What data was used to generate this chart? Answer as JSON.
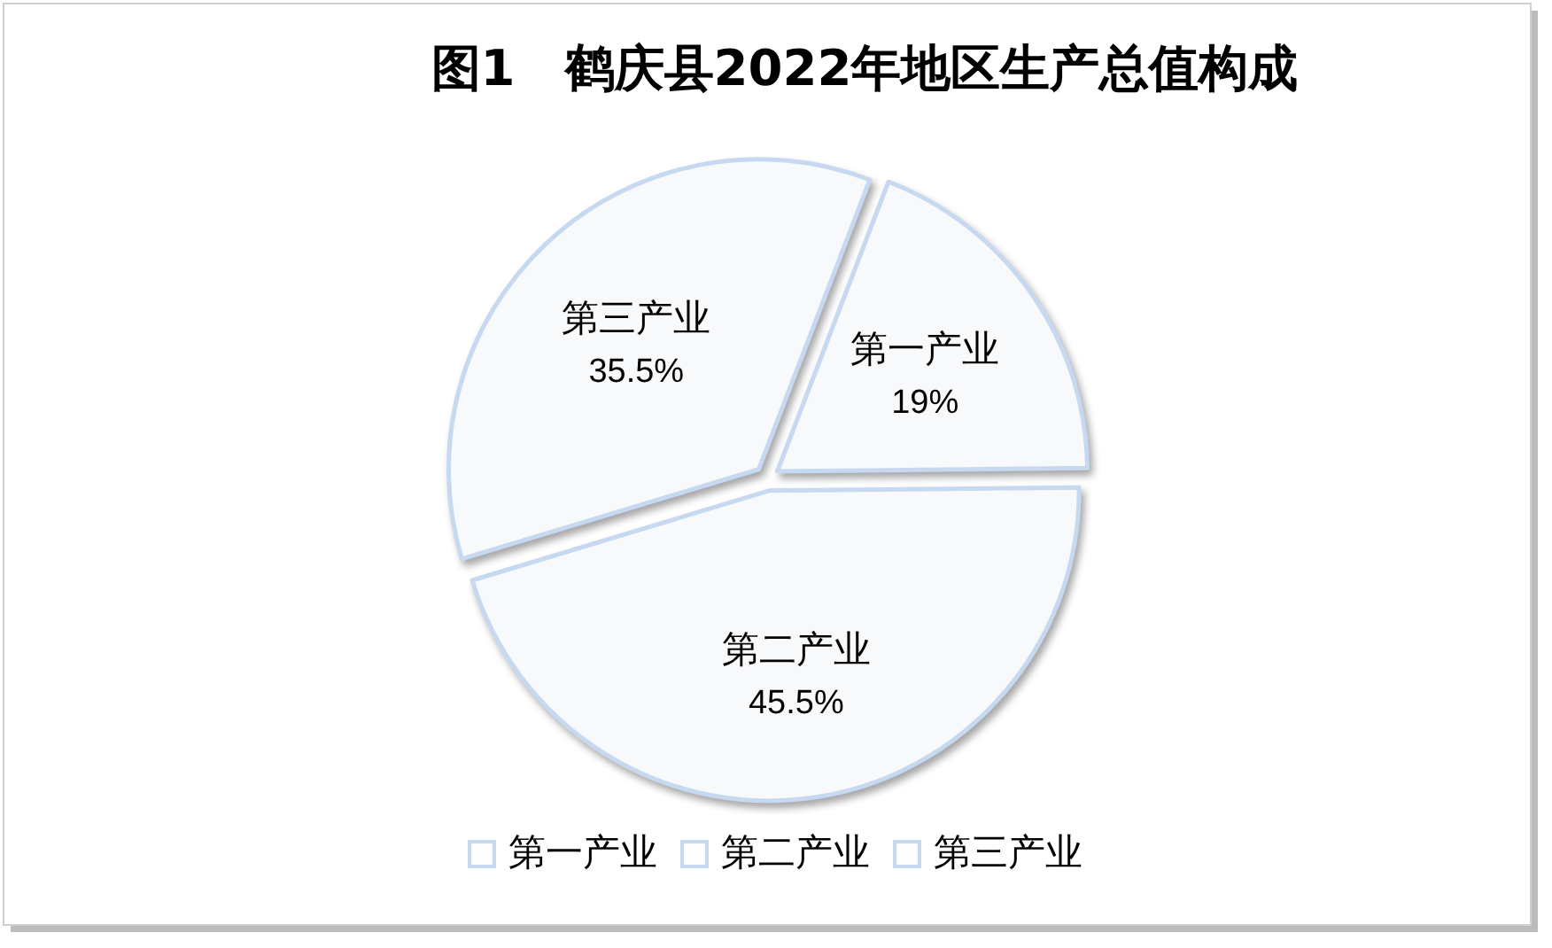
{
  "chart_data": {
    "type": "pie",
    "title": "图1　鹤庆县2022年地区生产总值构成",
    "categories": [
      "第一产业",
      "第二产业",
      "第三产业"
    ],
    "values": [
      19,
      45.5,
      35.5
    ],
    "value_labels": [
      "19%",
      "45.5%",
      "35.5%"
    ],
    "colors": [
      "#f8f9fb",
      "#f8f9fb",
      "#f8f9fb"
    ],
    "legend": "bottom"
  }
}
